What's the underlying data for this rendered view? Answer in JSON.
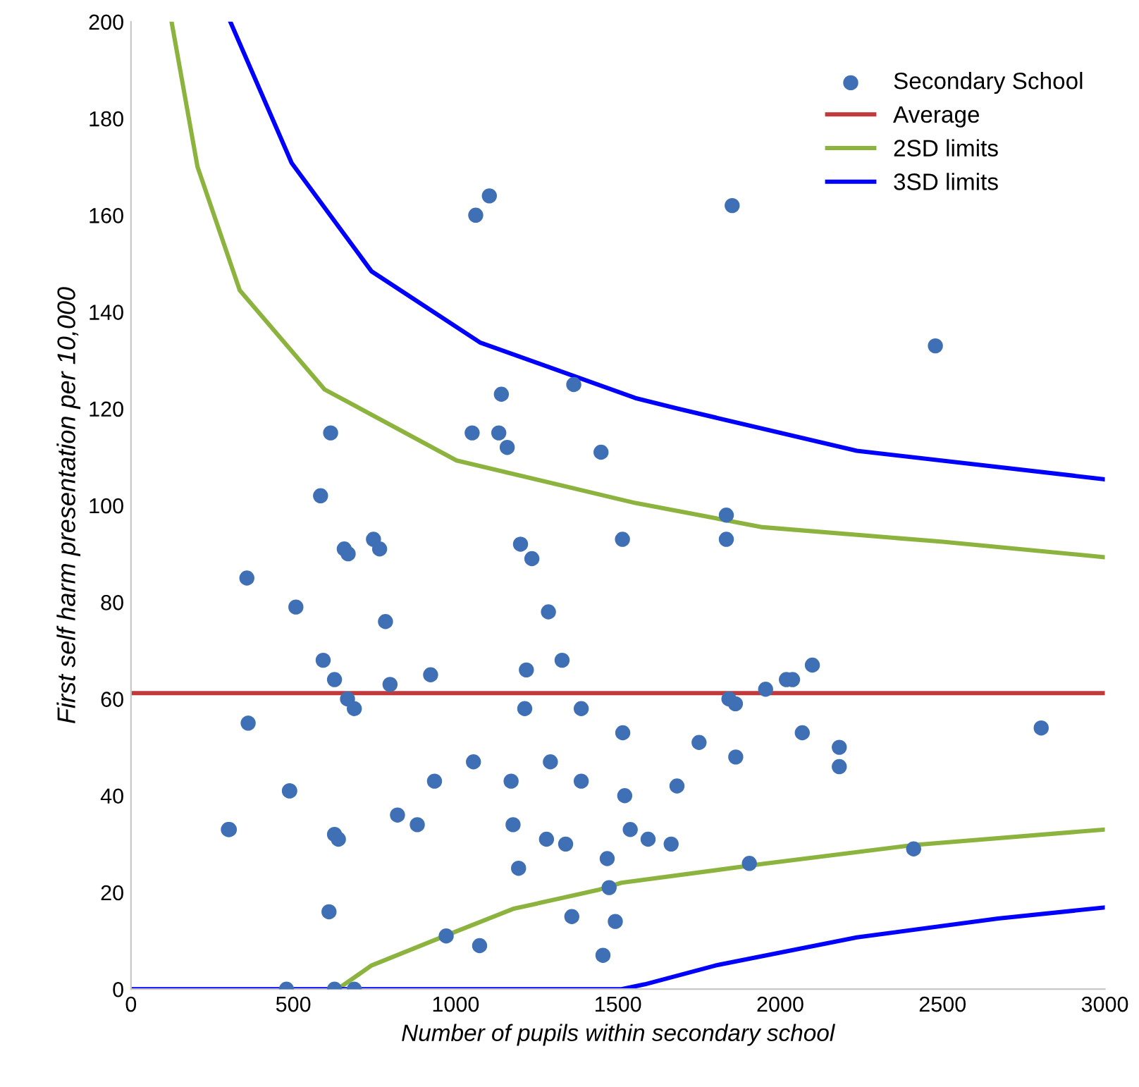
{
  "chart_data": {
    "type": "scatter",
    "xlabel": "Number of pupils within secondary school",
    "ylabel": "First self harm presentation per 10,000",
    "xlim": [
      0,
      3000
    ],
    "xticks": [
      0,
      500,
      1000,
      1500,
      2000,
      2500,
      3000
    ],
    "ylim": [
      0,
      200
    ],
    "yticks": [
      0,
      20,
      40,
      60,
      80,
      100,
      120,
      140,
      160,
      180,
      200
    ],
    "grid": false,
    "legend": "top right",
    "series": [
      {
        "name": "Secondary School",
        "marker": "circle",
        "color": "#3f6fb5",
        "x": [
          300,
          357,
          361,
          488,
          479,
          508,
          584,
          657,
          669,
          747,
          766,
          784,
          592,
          627,
          667,
          688,
          798,
          923,
          1200,
          1235,
          1286,
          1328,
          1218,
          1213,
          1387,
          1514,
          1515,
          1062,
          1104,
          1364,
          1141,
          1051,
          615,
          1133,
          1159,
          1448,
          1852,
          2478,
          1834,
          1834,
          2099,
          2019,
          2038,
          1955,
          1842,
          1862,
          1750,
          2068,
          2182,
          2182,
          1863,
          2804,
          1682,
          1593,
          1664,
          1905,
          2411,
          489,
          303,
          627,
          639,
          821,
          882,
          935,
          1055,
          1171,
          1177,
          1292,
          1387,
          1280,
          1339,
          1521,
          1538,
          1467,
          1473,
          1194,
          610,
          971,
          1074,
          1358,
          1492,
          1454,
          627,
          688
        ],
        "values": [
          33,
          85,
          55,
          41,
          0,
          79,
          102,
          91,
          90,
          93,
          91,
          76,
          68,
          64,
          60,
          58,
          63,
          65,
          92,
          89,
          78,
          68,
          66,
          58,
          58,
          93,
          53,
          160,
          164,
          125,
          123,
          115,
          115,
          115,
          112,
          111,
          162,
          133,
          98,
          93,
          67,
          64,
          64,
          62,
          60,
          59,
          51,
          53,
          50,
          46,
          48,
          54,
          42,
          31,
          30,
          26,
          29,
          41,
          33,
          32,
          31,
          36,
          34,
          43,
          47,
          43,
          34,
          47,
          43,
          31,
          30,
          40,
          33,
          27,
          21,
          25,
          16,
          11,
          9,
          15,
          14,
          7,
          0,
          0
        ]
      },
      {
        "name": "Average",
        "type": "line",
        "marker": "none",
        "color": "#c0393b",
        "x": [
          0,
          3000
        ],
        "values": [
          61.2,
          61.2
        ]
      },
      {
        "name": "2SD limits",
        "type": "line",
        "marker": "none",
        "color": "#8db33f",
        "x": [
          125,
          205,
          335,
          596,
          1003,
          1554,
          1946,
          2500,
          3000,
          null,
          647,
          741,
          974,
          1177,
          1438,
          1511,
          1946,
          2411,
          3000
        ],
        "values": [
          200,
          170,
          144.5,
          124,
          109.3,
          100.5,
          95.5,
          92.5,
          89.3,
          null,
          0.5,
          4.9,
          11.2,
          16.6,
          20.5,
          22,
          25.9,
          29.8,
          33
        ]
      },
      {
        "name": "3SD limits",
        "type": "line",
        "marker": "none",
        "color": "#0000ff",
        "x": [
          306,
          495,
          741,
          1075,
          1554,
          1685,
          2236,
          3000,
          null,
          0,
          1511,
          1583,
          1801,
          2236,
          2671,
          3000
        ],
        "values": [
          200,
          170.8,
          148.4,
          133.7,
          122.2,
          120,
          111.3,
          105.4,
          null,
          0,
          0,
          1,
          4.9,
          10.7,
          14.6,
          16.9
        ]
      }
    ]
  }
}
